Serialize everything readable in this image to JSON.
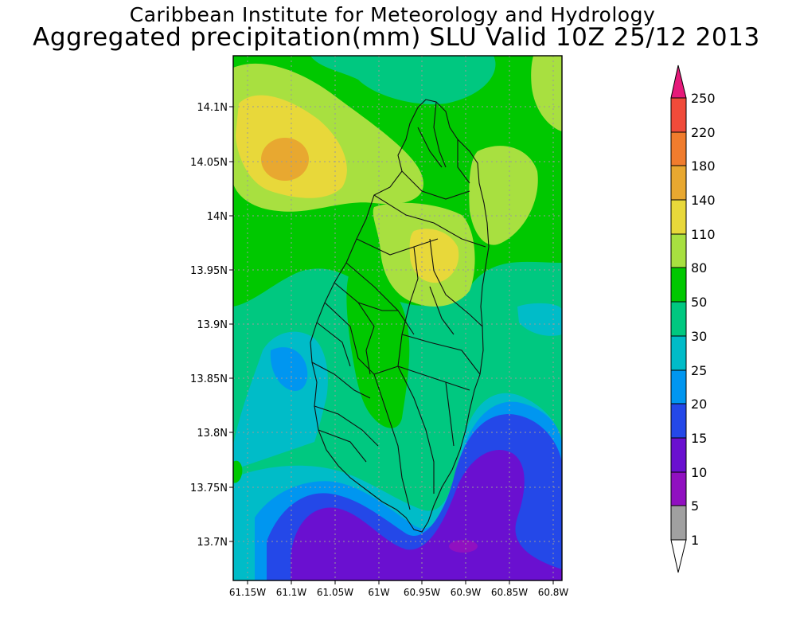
{
  "header": {
    "title": "Caribbean Institute for Meteorology and Hydrology",
    "subtitle": "Aggregated precipitation(mm) SLU Valid 10Z 25/12 2013"
  },
  "map": {
    "lat_labels": [
      "14.1N",
      "14.05N",
      "14N",
      "13.95N",
      "13.9N",
      "13.85N",
      "13.8N",
      "13.75N",
      "13.7N"
    ],
    "lon_labels": [
      "61.15W",
      "61.1W",
      "61.05W",
      "61W",
      "60.95W",
      "60.9W",
      "60.85W",
      "60.8W"
    ]
  },
  "colorbar": {
    "labels": [
      "250",
      "220",
      "180",
      "140",
      "110",
      "80",
      "50",
      "30",
      "25",
      "20",
      "15",
      "10",
      "5",
      "1"
    ],
    "colors": {
      "over": "#e6197a",
      "c220": "#f04b3a",
      "c180": "#f07c2d",
      "c140": "#e8a830",
      "c110": "#e8d83a",
      "c80": "#a8e040",
      "c50": "#00c800",
      "c30": "#00c880",
      "c25": "#00bcc8",
      "c20": "#0096f0",
      "c15": "#2448e8",
      "c10": "#6a10d0",
      "c5": "#9010c0",
      "c1": "#a0a0a0",
      "under": "#ffffff"
    }
  }
}
